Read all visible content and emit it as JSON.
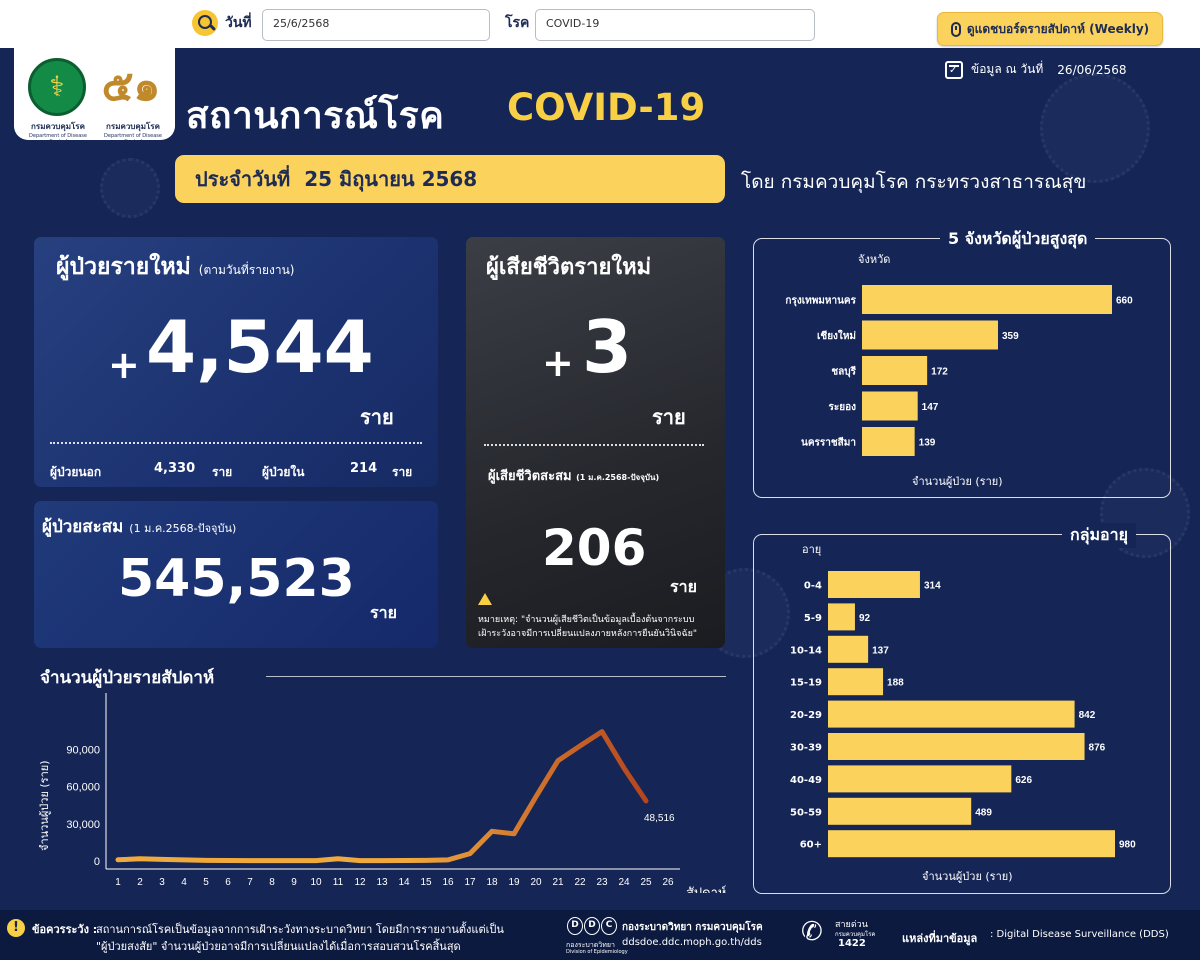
{
  "filters": {
    "date_label": "วันที่",
    "date_value": "25/6/2568",
    "disease_label": "โรค",
    "disease_value": "COVID-19",
    "weekly_button_label": "ดูแดชบอร์ดรายสัปดาห์ (Weekly)"
  },
  "header": {
    "title": "สถานการณ์โรค",
    "title_accent": "COVID-19",
    "asof_label": "ข้อมูล ณ วันที่",
    "asof_value": "26/06/2568",
    "daily_label": "ประจำวันที่",
    "daily_value": "25 มิถุนายน 2568",
    "by_line": "โดย กรมควบคุมโรค  กระทรวงสาธารณสุข",
    "ministry_caption": "กรมควบคุมโรค",
    "ministry_caption_en": "Department of Disease Control",
    "dept_caption": "กรมควบคุมโรค",
    "dept_caption_en": "Department of Disease Control"
  },
  "new_cases": {
    "title": "ผู้ป่วยรายใหม่",
    "subtitle": "(ตามวันที่รายงาน)",
    "plus": "+",
    "value": "4,544",
    "unit": "ราย",
    "outpatient_label": "ผู้ป่วยนอก",
    "outpatient_value": "4,330",
    "outpatient_unit": "ราย",
    "inpatient_label": "ผู้ป่วยใน",
    "inpatient_value": "214",
    "inpatient_unit": "ราย"
  },
  "cumulative_cases": {
    "title": "ผู้ป่วยสะสม",
    "subtitle": "(1 ม.ค.2568-ปัจจุบัน)",
    "value": "545,523",
    "unit": "ราย"
  },
  "deaths": {
    "title": "ผู้เสียชีวิตรายใหม่",
    "plus": "+",
    "value": "3",
    "unit": "ราย",
    "cumulative_label": "ผู้เสียชีวิตสะสม",
    "cumulative_subtitle": "(1 ม.ค.2568-ปัจจุบัน)",
    "cumulative_value": "206",
    "cumulative_unit": "ราย",
    "note_label": "หมายเหตุ:",
    "note_text_1": "\"จำนวนผู้เสียชีวิตเป็นข้อมูลเบื้องต้นจากระบบ",
    "note_text_2": "เฝ้าระวังอาจมีการเปลี่ยนแปลงภายหลังการยืนยันวินิจฉัย\""
  },
  "footer": {
    "caution_label": "ข้อควรระวัง :",
    "caution_text_1": "สถานการณ์โรคเป็นข้อมูลจากการเฝ้าระวังทางระบาดวิทยา โดยมีการรายงานตั้งแต่เป็น",
    "caution_text_2": "\"ผู้ป่วยสงสัย\" จำนวนผู้ป่วยอาจมีการเปลี่ยนแปลงได้เมื่อการสอบสวนโรคสิ้นสุด",
    "ddc_letters": [
      "D",
      "D",
      "C"
    ],
    "ddc_caption": "กองระบาดวิทยา",
    "ddc_caption_en": "Division of Epidemiology",
    "division_name": "กองระบาดวิทยา กรมควบคุมโรค",
    "division_url": "ddsdoe.ddc.moph.go.th/dds",
    "hotline_label": "สายด่วน",
    "hotline_sub": "กรมควบคุมโรค",
    "hotline_number": "1422",
    "source_label": "แหล่งที่มาข้อมูล",
    "source_value": ": Digital Disease Surveillance (DDS)"
  },
  "icons": [
    "search-icon",
    "mouse-icon",
    "calendar-icon",
    "warning-icon",
    "phone-icon",
    "ministry-logo",
    "department-logo"
  ],
  "colors": {
    "background": "#142556",
    "accent": "#fbd25c",
    "line_start": "#f0a93c",
    "line_end": "#b4451f"
  },
  "chart_data": [
    {
      "type": "line",
      "title": "จำนวนผู้ป่วยรายสัปดาห์",
      "xlabel": "สัปดาห์",
      "ylabel": "จำนวนผู้ป่วย (ราย)",
      "x": [
        1,
        2,
        3,
        4,
        5,
        6,
        7,
        8,
        9,
        10,
        11,
        12,
        13,
        14,
        15,
        16,
        17,
        18,
        19,
        20,
        21,
        22,
        23,
        24,
        25
      ],
      "x_ticks": [
        1,
        2,
        3,
        4,
        5,
        6,
        7,
        8,
        9,
        10,
        11,
        12,
        13,
        14,
        15,
        16,
        17,
        18,
        19,
        20,
        21,
        22,
        23,
        24,
        25,
        26
      ],
      "values": [
        1000,
        1800,
        1300,
        900,
        500,
        400,
        300,
        300,
        300,
        300,
        1800,
        300,
        300,
        400,
        500,
        900,
        6000,
        24000,
        22000,
        52000,
        81000,
        93000,
        104500,
        75000,
        48516
      ],
      "ylim": [
        0,
        105000
      ],
      "y_ticks": [
        0,
        30000,
        60000,
        90000
      ],
      "y_tick_labels": [
        "0",
        "30,000",
        "60,000",
        "90,000"
      ],
      "last_label": "48,516",
      "grid": false
    },
    {
      "type": "bar",
      "orientation": "horizontal",
      "title": "5  จังหวัดผู้ป่วยสูงสุด",
      "ylabel": "จังหวัด",
      "xlabel": "จำนวนผู้ป่วย (ราย)",
      "categories": [
        "กรุงเทพมหานคร",
        "เชียงใหม่",
        "ชลบุรี",
        "ระยอง",
        "นครราชสีมา"
      ],
      "values": [
        660,
        359,
        172,
        147,
        139
      ],
      "xlim": [
        0,
        660
      ]
    },
    {
      "type": "bar",
      "orientation": "horizontal",
      "title": "กลุ่มอายุ",
      "ylabel": "อายุ",
      "xlabel": "จำนวนผู้ป่วย (ราย)",
      "categories": [
        "0-4",
        "5-9",
        "10-14",
        "15-19",
        "20-29",
        "30-39",
        "40-49",
        "50-59",
        "60+"
      ],
      "values": [
        314,
        92,
        137,
        188,
        842,
        876,
        626,
        489,
        980
      ],
      "xlim": [
        0,
        980
      ]
    }
  ]
}
